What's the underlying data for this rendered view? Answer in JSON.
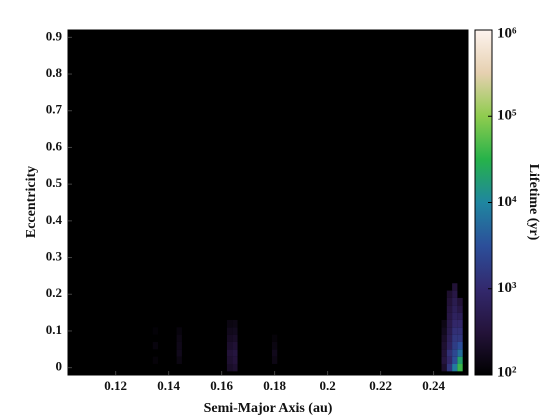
{
  "chart_data": {
    "type": "heatmap",
    "x_label": "Semi-Major Axis (au)",
    "y_label": "Eccentricity",
    "colorbar_label": "Lifetime (yr)",
    "xlim": [
      0.102,
      0.253
    ],
    "ylim": [
      -0.02,
      0.92
    ],
    "xticks": [
      0.12,
      0.14,
      0.16,
      0.18,
      0.2,
      0.22,
      0.24
    ],
    "yticks": [
      0,
      0.1,
      0.2,
      0.3,
      0.4,
      0.5,
      0.6,
      0.7,
      0.8,
      0.9
    ],
    "clim": [
      100,
      1000000
    ],
    "clog": true,
    "cticks": [
      {
        "value": 100,
        "label": "10²"
      },
      {
        "value": 1000,
        "label": "10³"
      },
      {
        "value": 10000,
        "label": "10⁴"
      },
      {
        "value": 100000,
        "label": "10⁵"
      },
      {
        "value": 1000000,
        "label": "10⁶"
      }
    ],
    "colormap": [
      "#000000",
      "#24133a",
      "#33296e",
      "#2c4f9a",
      "#1f86a0",
      "#26b24a",
      "#8fcc4e",
      "#e6d0b0",
      "#fdf3ee"
    ],
    "x": [
      0.135,
      0.135,
      0.135,
      0.144,
      0.144,
      0.144,
      0.144,
      0.144,
      0.163,
      0.163,
      0.163,
      0.163,
      0.163,
      0.163,
      0.163,
      0.165,
      0.165,
      0.165,
      0.165,
      0.165,
      0.165,
      0.165,
      0.18,
      0.18,
      0.18,
      0.18,
      0.244,
      0.244,
      0.244,
      0.244,
      0.244,
      0.244,
      0.244,
      0.246,
      0.246,
      0.246,
      0.246,
      0.246,
      0.246,
      0.246,
      0.246,
      0.246,
      0.246,
      0.246,
      0.248,
      0.248,
      0.248,
      0.248,
      0.248,
      0.248,
      0.248,
      0.248,
      0.248,
      0.248,
      0.248,
      0.248,
      0.25,
      0.25,
      0.25,
      0.25,
      0.25,
      0.25,
      0.25,
      0.25,
      0.25,
      0.25
    ],
    "y": [
      0.02,
      0.06,
      0.1,
      0.02,
      0.04,
      0.06,
      0.08,
      0.1,
      0,
      0.02,
      0.04,
      0.06,
      0.08,
      0.1,
      0.12,
      0,
      0.02,
      0.04,
      0.06,
      0.08,
      0.1,
      0.12,
      0.02,
      0.04,
      0.06,
      0.08,
      0,
      0.02,
      0.04,
      0.06,
      0.08,
      0.1,
      0.12,
      0,
      0.02,
      0.04,
      0.06,
      0.08,
      0.1,
      0.12,
      0.14,
      0.16,
      0.18,
      0.2,
      0,
      0.02,
      0.04,
      0.06,
      0.08,
      0.1,
      0.12,
      0.14,
      0.16,
      0.18,
      0.2,
      0.22,
      0,
      0.02,
      0.04,
      0.06,
      0.08,
      0.1,
      0.12,
      0.14,
      0.16,
      0.18
    ],
    "values": [
      120,
      130,
      115,
      140,
      170,
      160,
      150,
      130,
      220,
      260,
      300,
      240,
      200,
      170,
      140,
      260,
      320,
      350,
      280,
      220,
      180,
      150,
      150,
      170,
      140,
      120,
      250,
      350,
      300,
      260,
      220,
      180,
      150,
      1500,
      900,
      1200,
      700,
      600,
      500,
      450,
      400,
      350,
      300,
      250,
      8000,
      3000,
      2500,
      1800,
      1500,
      1200,
      900,
      700,
      600,
      500,
      400,
      300,
      40000,
      20000,
      6000,
      3000,
      1500,
      1200,
      900,
      600,
      400,
      300
    ]
  }
}
